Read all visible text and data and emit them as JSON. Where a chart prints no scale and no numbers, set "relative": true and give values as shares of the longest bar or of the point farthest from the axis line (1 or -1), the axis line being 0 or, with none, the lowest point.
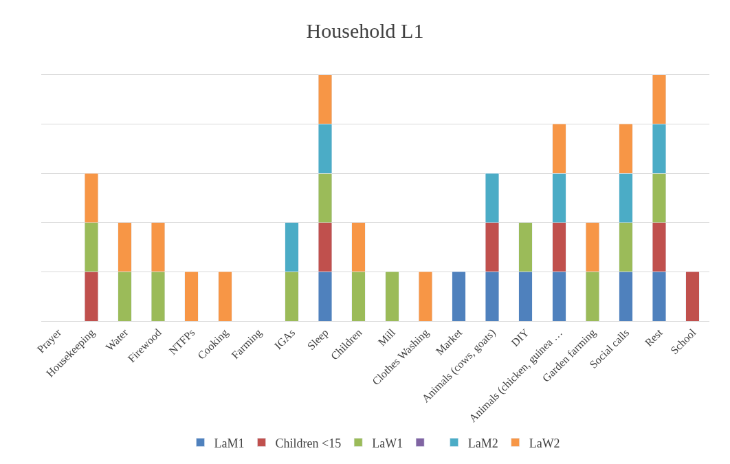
{
  "chart_data": {
    "type": "bar",
    "title": "Household L1",
    "stacked": true,
    "relative": true,
    "grid": "y",
    "legend": "bottom",
    "categories": [
      "Prayer",
      "Housekeeping",
      "Water",
      "Firewood",
      "NTFPs",
      "Cooking",
      "Farming",
      "IGAs",
      "Sleep",
      "Children",
      "Mill",
      "Clothes Washing",
      "Market",
      "Animals (cows, goats)",
      "DIY",
      "Animals (chicken, guinea …",
      "Garden farming",
      "Social calls",
      "Rest",
      "School"
    ],
    "series": [
      {
        "name": "LaM1",
        "color": "#4f81bd",
        "values": [
          null,
          null,
          null,
          null,
          null,
          null,
          null,
          null,
          0.2,
          null,
          null,
          null,
          0.2,
          0.2,
          0.2,
          0.2,
          null,
          0.2,
          0.2,
          null
        ]
      },
      {
        "name": "Children <15",
        "color": "#c0504d",
        "values": [
          null,
          0.2,
          null,
          null,
          null,
          null,
          null,
          null,
          0.2,
          null,
          null,
          null,
          null,
          0.2,
          null,
          0.2,
          null,
          null,
          0.2,
          0.2
        ]
      },
      {
        "name": "LaW1",
        "color": "#9bbb59",
        "values": [
          null,
          0.2,
          0.2,
          0.2,
          null,
          null,
          null,
          0.2,
          0.2,
          0.2,
          0.2,
          null,
          null,
          null,
          0.2,
          null,
          0.2,
          0.2,
          0.2,
          null
        ]
      },
      {
        "color": "#8064a2",
        "values": [
          null,
          null,
          null,
          null,
          null,
          null,
          null,
          null,
          null,
          null,
          null,
          null,
          null,
          null,
          null,
          null,
          null,
          null,
          null,
          null
        ]
      },
      {
        "name": "LaM2",
        "color": "#4bacc6",
        "values": [
          null,
          null,
          null,
          null,
          null,
          null,
          null,
          0.2,
          0.2,
          null,
          null,
          null,
          null,
          0.2,
          null,
          0.2,
          null,
          0.2,
          0.2,
          null
        ]
      },
      {
        "name": "LaW2",
        "color": "#f79646",
        "values": [
          null,
          0.2,
          0.2,
          0.2,
          0.2,
          0.2,
          null,
          null,
          0.2,
          0.2,
          null,
          0.2,
          null,
          null,
          null,
          0.2,
          0.2,
          0.2,
          0.2,
          null
        ]
      }
    ]
  }
}
